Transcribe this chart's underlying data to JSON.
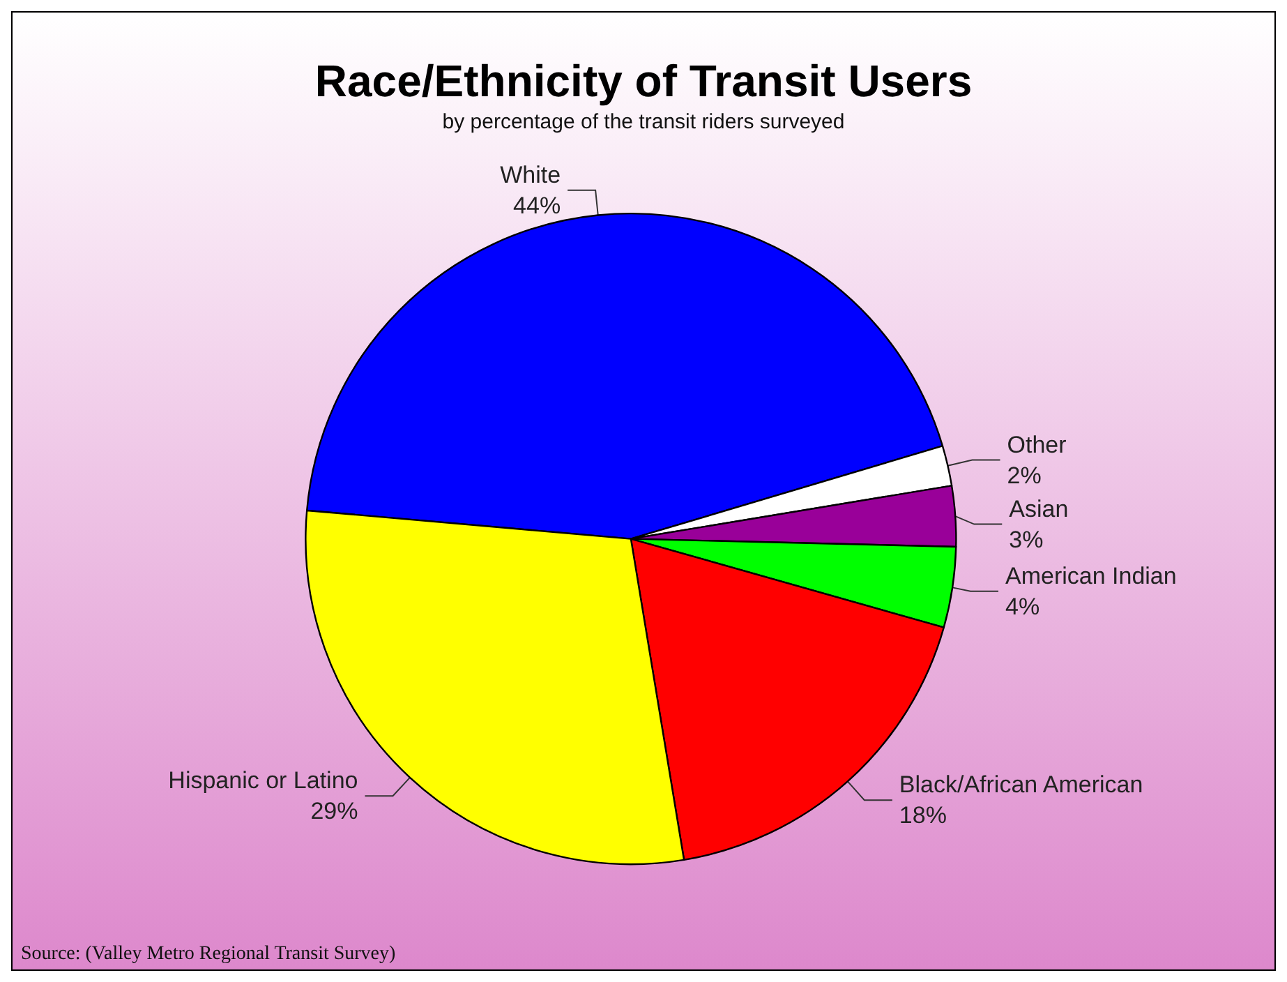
{
  "chart_data": {
    "type": "pie",
    "title": "Race/Ethnicity of Transit Users",
    "subtitle": "by percentage of the transit riders surveyed",
    "categories": [
      "White",
      "Other",
      "Asian",
      "American Indian",
      "Black/African American",
      "Hispanic or Latino"
    ],
    "values": [
      44,
      2,
      3,
      4,
      18,
      29
    ],
    "value_labels": [
      "44%",
      "2%",
      "3%",
      "4%",
      "18%",
      "29%"
    ],
    "colors": [
      "#0000ff",
      "#ffffff",
      "#990099",
      "#00ff00",
      "#ff0000",
      "#ffff00"
    ],
    "legend": false,
    "annotations": [
      "Source: (Valley Metro Regional Transit Survey)"
    ]
  }
}
